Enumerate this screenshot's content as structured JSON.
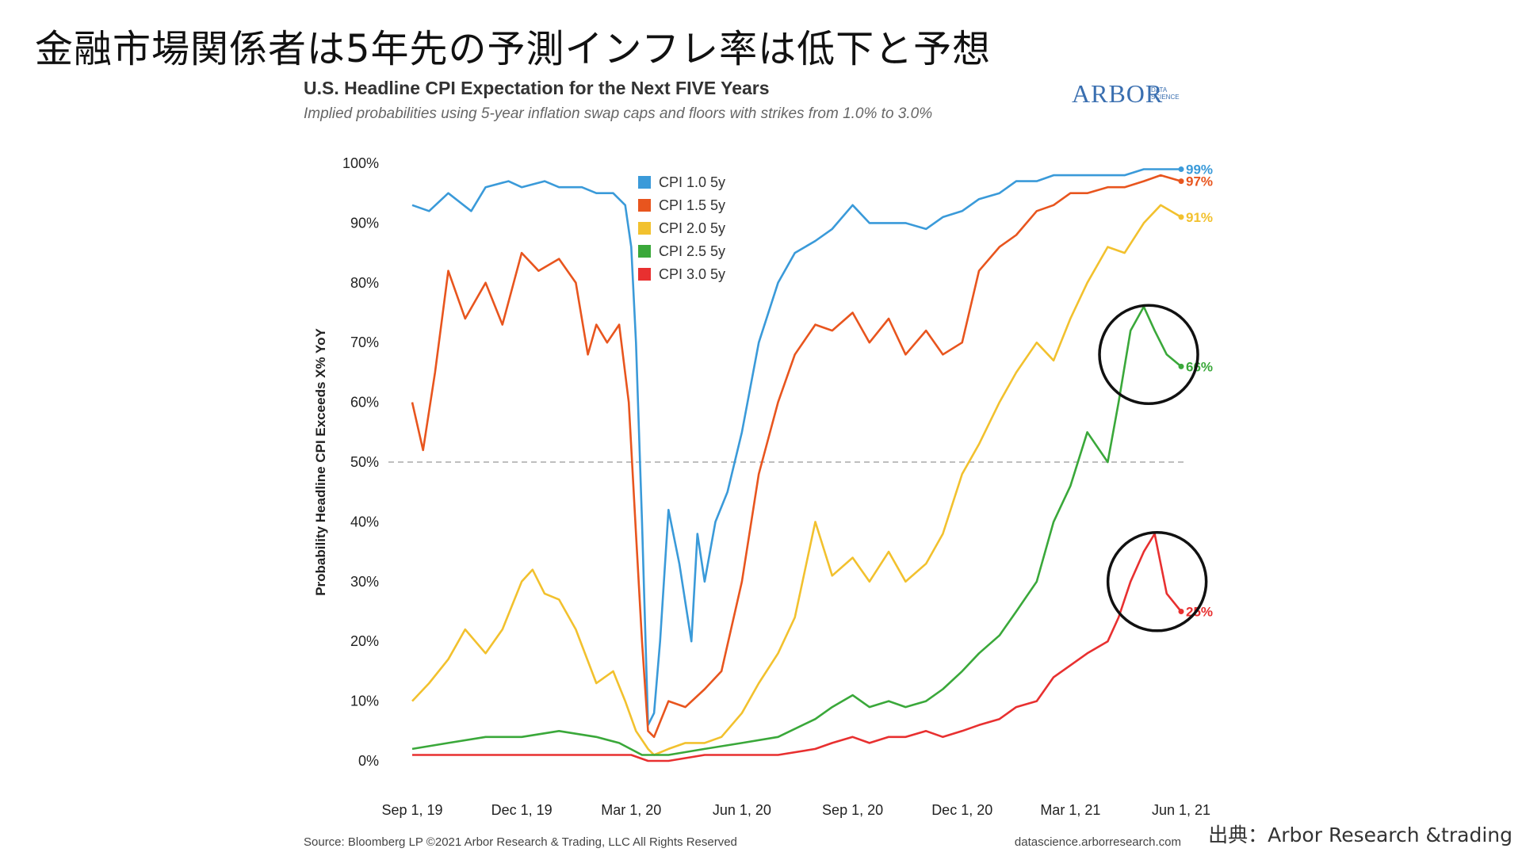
{
  "slide": {
    "title": "金融市場関係者は5年先の予測インフレ率は低下と予想",
    "credit": "出典：Arbor Research &trading"
  },
  "logo": {
    "main": "ARBOR",
    "sub1": "DATA",
    "sub2": "SCIENCE"
  },
  "footer": {
    "source": "Source: Bloomberg LP  ©2021 Arbor Research & Trading, LLC  All Rights Reserved",
    "site": "datascience.arborresearch.com"
  },
  "chart_data": {
    "type": "line",
    "title": "U.S. Headline CPI Expectation for the Next FIVE Years",
    "subtitle": "Implied probabilities using 5-year inflation swap caps and floors with strikes from 1.0% to 3.0%",
    "ylabel": "Probability Headline CPI Exceeds X% YoY",
    "xlabel": "",
    "ylim": [
      0,
      100
    ],
    "xlim": [
      "2019-09-01",
      "2021-06-01"
    ],
    "y_ticks": [
      "0%",
      "10%",
      "20%",
      "30%",
      "40%",
      "50%",
      "60%",
      "70%",
      "80%",
      "90%",
      "100%"
    ],
    "x_ticks": [
      "Sep 1, 19",
      "Dec 1, 19",
      "Mar 1, 20",
      "Jun 1, 20",
      "Sep 1, 20",
      "Dec 1, 20",
      "Mar 1, 21",
      "Jun 1, 21"
    ],
    "reference_line": {
      "y": 50,
      "style": "dashed"
    },
    "legend_position": "top-center",
    "end_labels": [
      "99%",
      "97%",
      "91%",
      "66%",
      "25%"
    ],
    "annotations": [
      "circle around CPI 2.5 5y end",
      "circle around CPI 3.0 5y end"
    ],
    "series": [
      {
        "name": "CPI 1.0 5y",
        "color": "#3a9ad9",
        "end_label": "99%",
        "x": [
          "2019-09-01",
          "2019-09-15",
          "2019-10-01",
          "2019-10-20",
          "2019-11-01",
          "2019-11-20",
          "2019-12-01",
          "2019-12-20",
          "2020-01-01",
          "2020-01-20",
          "2020-02-01",
          "2020-02-15",
          "2020-02-25",
          "2020-03-01",
          "2020-03-05",
          "2020-03-10",
          "2020-03-15",
          "2020-03-20",
          "2020-03-25",
          "2020-04-01",
          "2020-04-10",
          "2020-04-20",
          "2020-04-25",
          "2020-05-01",
          "2020-05-10",
          "2020-05-20",
          "2020-06-01",
          "2020-06-15",
          "2020-07-01",
          "2020-07-15",
          "2020-08-01",
          "2020-08-15",
          "2020-09-01",
          "2020-09-15",
          "2020-10-01",
          "2020-10-15",
          "2020-11-01",
          "2020-11-15",
          "2020-12-01",
          "2020-12-15",
          "2021-01-01",
          "2021-01-15",
          "2021-02-01",
          "2021-02-15",
          "2021-03-01",
          "2021-03-15",
          "2021-04-01",
          "2021-04-15",
          "2021-05-01",
          "2021-05-15",
          "2021-06-01"
        ],
        "y": [
          93,
          92,
          95,
          92,
          96,
          97,
          96,
          97,
          96,
          96,
          95,
          95,
          93,
          86,
          70,
          40,
          6,
          8,
          20,
          42,
          33,
          20,
          38,
          30,
          40,
          45,
          55,
          70,
          80,
          85,
          87,
          89,
          93,
          90,
          90,
          90,
          89,
          91,
          92,
          94,
          95,
          97,
          97,
          98,
          98,
          98,
          98,
          98,
          99,
          99,
          99
        ]
      },
      {
        "name": "CPI 1.5 5y",
        "color": "#e8551e",
        "end_label": "97%",
        "x": [
          "2019-09-01",
          "2019-09-10",
          "2019-09-20",
          "2019-10-01",
          "2019-10-15",
          "2019-11-01",
          "2019-11-15",
          "2019-12-01",
          "2019-12-15",
          "2020-01-01",
          "2020-01-15",
          "2020-01-25",
          "2020-02-01",
          "2020-02-10",
          "2020-02-20",
          "2020-02-28",
          "2020-03-05",
          "2020-03-10",
          "2020-03-15",
          "2020-03-20",
          "2020-04-01",
          "2020-04-15",
          "2020-05-01",
          "2020-05-15",
          "2020-06-01",
          "2020-06-15",
          "2020-07-01",
          "2020-07-15",
          "2020-08-01",
          "2020-08-15",
          "2020-09-01",
          "2020-09-15",
          "2020-10-01",
          "2020-10-15",
          "2020-11-01",
          "2020-11-15",
          "2020-12-01",
          "2020-12-15",
          "2021-01-01",
          "2021-01-15",
          "2021-02-01",
          "2021-02-15",
          "2021-03-01",
          "2021-03-15",
          "2021-04-01",
          "2021-04-15",
          "2021-05-01",
          "2021-05-15",
          "2021-06-01"
        ],
        "y": [
          60,
          52,
          65,
          82,
          74,
          80,
          73,
          85,
          82,
          84,
          80,
          68,
          73,
          70,
          73,
          60,
          38,
          20,
          5,
          4,
          10,
          9,
          12,
          15,
          30,
          48,
          60,
          68,
          73,
          72,
          75,
          70,
          74,
          68,
          72,
          68,
          70,
          82,
          86,
          88,
          92,
          93,
          95,
          95,
          96,
          96,
          97,
          98,
          97
        ]
      },
      {
        "name": "CPI 2.0 5y",
        "color": "#f2c12e",
        "end_label": "91%",
        "x": [
          "2019-09-01",
          "2019-09-15",
          "2019-10-01",
          "2019-10-15",
          "2019-11-01",
          "2019-11-15",
          "2019-12-01",
          "2019-12-10",
          "2019-12-20",
          "2020-01-01",
          "2020-01-15",
          "2020-02-01",
          "2020-02-15",
          "2020-02-25",
          "2020-03-05",
          "2020-03-15",
          "2020-03-20",
          "2020-04-01",
          "2020-04-15",
          "2020-05-01",
          "2020-05-15",
          "2020-06-01",
          "2020-06-15",
          "2020-07-01",
          "2020-07-15",
          "2020-08-01",
          "2020-08-15",
          "2020-09-01",
          "2020-09-15",
          "2020-10-01",
          "2020-10-15",
          "2020-11-01",
          "2020-11-15",
          "2020-12-01",
          "2020-12-15",
          "2021-01-01",
          "2021-01-15",
          "2021-02-01",
          "2021-02-15",
          "2021-03-01",
          "2021-03-15",
          "2021-04-01",
          "2021-04-15",
          "2021-05-01",
          "2021-05-15",
          "2021-06-01"
        ],
        "y": [
          10,
          13,
          17,
          22,
          18,
          22,
          30,
          32,
          28,
          27,
          22,
          13,
          15,
          10,
          5,
          2,
          1,
          2,
          3,
          3,
          4,
          8,
          13,
          18,
          24,
          40,
          31,
          34,
          30,
          35,
          30,
          33,
          38,
          48,
          53,
          60,
          65,
          70,
          67,
          74,
          80,
          86,
          85,
          90,
          93,
          91
        ]
      },
      {
        "name": "CPI 2.5 5y",
        "color": "#3aa83a",
        "end_label": "66%",
        "x": [
          "2019-09-01",
          "2019-10-01",
          "2019-11-01",
          "2019-12-01",
          "2020-01-01",
          "2020-02-01",
          "2020-02-20",
          "2020-03-10",
          "2020-03-20",
          "2020-04-01",
          "2020-05-01",
          "2020-06-01",
          "2020-07-01",
          "2020-08-01",
          "2020-08-15",
          "2020-09-01",
          "2020-09-15",
          "2020-10-01",
          "2020-10-15",
          "2020-11-01",
          "2020-11-15",
          "2020-12-01",
          "2020-12-15",
          "2021-01-01",
          "2021-01-15",
          "2021-02-01",
          "2021-02-15",
          "2021-03-01",
          "2021-03-15",
          "2021-04-01",
          "2021-04-10",
          "2021-04-20",
          "2021-05-01",
          "2021-05-10",
          "2021-05-20",
          "2021-06-01"
        ],
        "y": [
          2,
          3,
          4,
          4,
          5,
          4,
          3,
          1,
          1,
          1,
          2,
          3,
          4,
          7,
          9,
          11,
          9,
          10,
          9,
          10,
          12,
          15,
          18,
          21,
          25,
          30,
          40,
          46,
          55,
          50,
          60,
          72,
          76,
          72,
          68,
          66
        ]
      },
      {
        "name": "CPI 3.0 5y",
        "color": "#e83030",
        "end_label": "25%",
        "x": [
          "2019-09-01",
          "2019-10-01",
          "2019-11-01",
          "2019-12-01",
          "2020-01-01",
          "2020-02-01",
          "2020-03-01",
          "2020-03-15",
          "2020-04-01",
          "2020-05-01",
          "2020-06-01",
          "2020-07-01",
          "2020-08-01",
          "2020-08-15",
          "2020-09-01",
          "2020-09-15",
          "2020-10-01",
          "2020-10-15",
          "2020-11-01",
          "2020-11-15",
          "2020-12-01",
          "2020-12-15",
          "2021-01-01",
          "2021-01-15",
          "2021-02-01",
          "2021-02-15",
          "2021-03-01",
          "2021-03-15",
          "2021-04-01",
          "2021-04-10",
          "2021-04-20",
          "2021-05-01",
          "2021-05-10",
          "2021-05-20",
          "2021-06-01"
        ],
        "y": [
          1,
          1,
          1,
          1,
          1,
          1,
          1,
          0,
          0,
          1,
          1,
          1,
          2,
          3,
          4,
          3,
          4,
          4,
          5,
          4,
          5,
          6,
          7,
          9,
          10,
          14,
          16,
          18,
          20,
          24,
          30,
          35,
          38,
          28,
          25
        ]
      }
    ]
  }
}
